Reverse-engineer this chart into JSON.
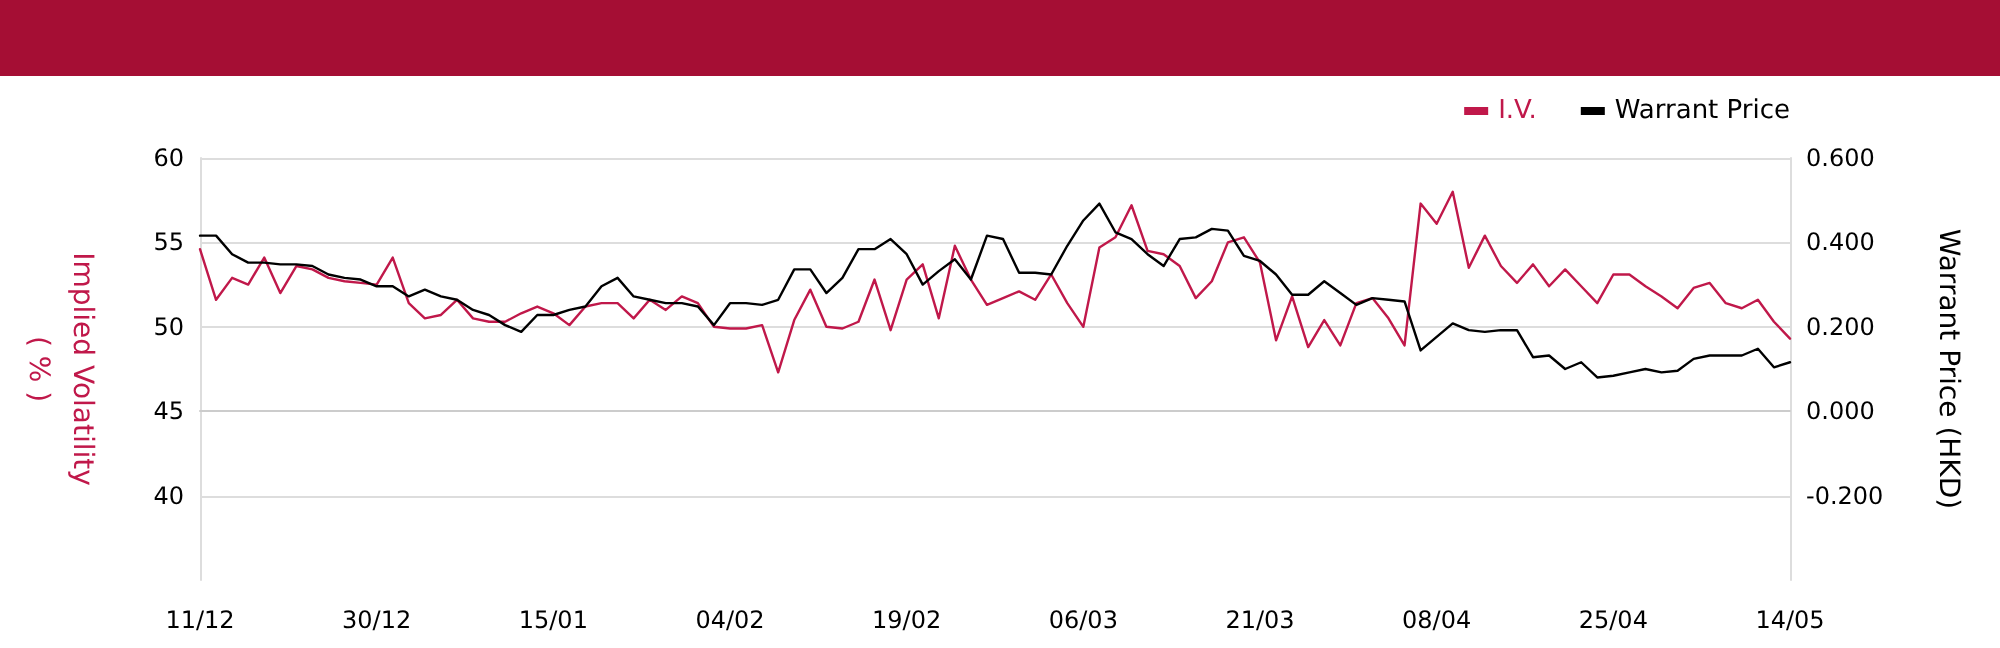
{
  "chart_data": {
    "type": "line",
    "ylabel": "Implied Volatility\n( % )",
    "y2label": "Warrant Price (HKD)",
    "categories": [
      "11/12",
      null,
      null,
      null,
      null,
      null,
      null,
      null,
      null,
      null,
      null,
      "30/12",
      null,
      null,
      null,
      null,
      null,
      null,
      null,
      null,
      null,
      null,
      "15/01",
      null,
      null,
      null,
      null,
      null,
      null,
      null,
      null,
      null,
      null,
      "04/02",
      null,
      null,
      null,
      null,
      null,
      null,
      null,
      null,
      null,
      null,
      "19/02",
      null,
      null,
      null,
      null,
      null,
      null,
      null,
      null,
      null,
      null,
      "06/03",
      null,
      null,
      null,
      null,
      null,
      null,
      null,
      null,
      null,
      null,
      "21/03",
      null,
      null,
      null,
      null,
      null,
      null,
      null,
      null,
      null,
      null,
      "08/04",
      null,
      null,
      null,
      null,
      null,
      null,
      null,
      null,
      null,
      null,
      "25/04",
      null,
      null,
      null,
      null,
      null,
      null,
      null,
      null,
      null,
      null,
      "14/05"
    ],
    "series": [
      {
        "name": "I.V.",
        "color": "#c0184a",
        "values": [
          54.6,
          51.6,
          52.9,
          52.5,
          54.1,
          52.0,
          53.6,
          53.4,
          52.9,
          52.7,
          52.6,
          52.5,
          54.1,
          51.4,
          50.5,
          50.7,
          51.6,
          50.5,
          50.3,
          50.3,
          50.8,
          51.2,
          50.8,
          50.1,
          51.2,
          51.4,
          51.4,
          50.5,
          51.6,
          51.0,
          51.8,
          51.4,
          50.0,
          49.9,
          49.9,
          50.1,
          47.3,
          50.4,
          52.2,
          50.0,
          49.9,
          50.3,
          52.8,
          49.8,
          52.8,
          53.7,
          50.5,
          54.8,
          52.8,
          51.3,
          51.7,
          52.1,
          51.6,
          53.1,
          51.4,
          50.0,
          54.7,
          55.3,
          57.2,
          54.5,
          54.3,
          53.6,
          51.7,
          52.7,
          55.0,
          55.3,
          53.8,
          49.2,
          51.8,
          48.8,
          50.4,
          48.9,
          51.4,
          51.7,
          50.5,
          48.9,
          57.3,
          56.1,
          58.0,
          53.5,
          55.4,
          53.6,
          52.6,
          53.7,
          52.4,
          53.4,
          52.4,
          51.4,
          53.1,
          53.1,
          52.4,
          51.8,
          51.1,
          52.3,
          52.6,
          51.4,
          51.1,
          51.6,
          50.3,
          49.3
        ]
      },
      {
        "name": "Warrant Price",
        "color": "#000000",
        "axis": "y2",
        "values": [
          0.416,
          0.416,
          0.372,
          0.352,
          0.352,
          0.348,
          0.348,
          0.344,
          0.324,
          0.316,
          0.312,
          0.296,
          0.296,
          0.272,
          0.288,
          0.272,
          0.264,
          0.24,
          0.228,
          0.204,
          0.188,
          0.228,
          0.228,
          0.24,
          0.248,
          0.296,
          0.316,
          0.272,
          0.264,
          0.256,
          0.256,
          0.248,
          0.204,
          0.256,
          0.256,
          0.252,
          0.264,
          0.336,
          0.336,
          0.28,
          0.316,
          0.384,
          0.384,
          0.408,
          0.372,
          0.3,
          0.332,
          0.36,
          0.312,
          0.416,
          0.408,
          0.328,
          0.328,
          0.324,
          0.392,
          0.452,
          0.492,
          0.424,
          0.408,
          0.372,
          0.344,
          0.408,
          0.412,
          0.432,
          0.428,
          0.368,
          0.356,
          0.324,
          0.276,
          0.276,
          0.308,
          0.28,
          0.252,
          0.268,
          0.264,
          0.26,
          0.144,
          0.176,
          0.208,
          0.192,
          0.188,
          0.192,
          0.192,
          0.128,
          0.132,
          0.1,
          0.116,
          0.08,
          0.084,
          0.092,
          0.1,
          0.092,
          0.096,
          0.124,
          0.132,
          0.132,
          0.132,
          0.148,
          0.104,
          0.116
        ]
      }
    ],
    "ylim": [
      35,
      60
    ],
    "yticks": [
      40,
      45,
      50,
      55,
      60
    ],
    "y2lim": [
      -0.4,
      0.6
    ],
    "y2ticks": [
      {
        "value": -0.2,
        "label": "-0.200"
      },
      {
        "value": 0,
        "label": "0.000"
      },
      {
        "value": 0.2,
        "label": "0.200"
      },
      {
        "value": 0.4,
        "label": "0.400"
      },
      {
        "value": 0.6,
        "label": "0.600"
      }
    ],
    "grid": "y",
    "legend": "top right",
    "marker": "none",
    "line_style": "solid"
  }
}
